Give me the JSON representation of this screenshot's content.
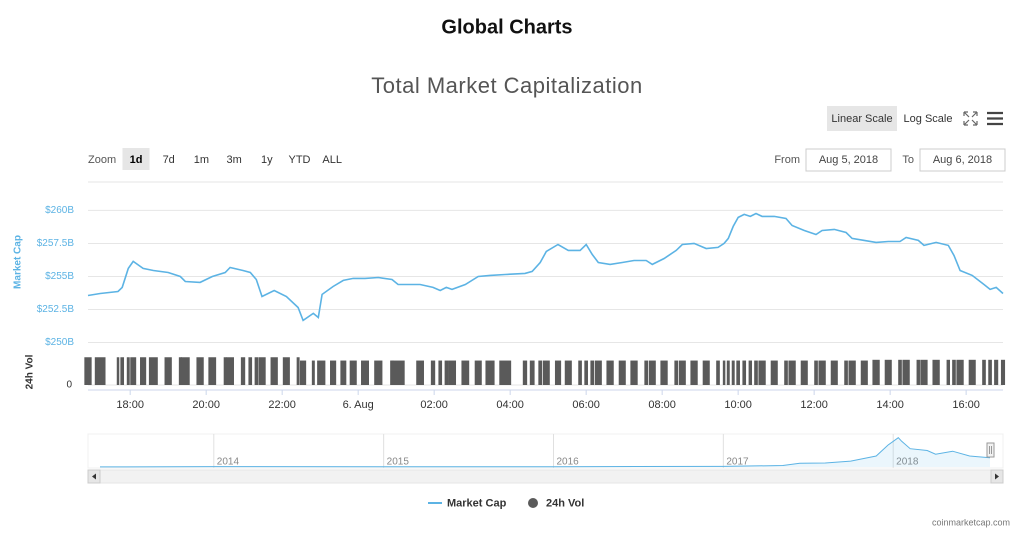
{
  "header": {
    "title": "Global Charts"
  },
  "toolbar": {
    "scale_buttons": [
      "Linear Scale",
      "Log Scale"
    ],
    "selected_scale": 0,
    "zoom_label": "Zoom",
    "zoom_buttons": [
      "1d",
      "7d",
      "1m",
      "3m",
      "1y",
      "YTD",
      "ALL"
    ],
    "selected_zoom": 0,
    "from_label": "From",
    "from_date": "Aug 5, 2018",
    "to_label": "To",
    "to_date": "Aug 6, 2018"
  },
  "chart_data": {
    "type": "line",
    "title": "Total Market Capitalization",
    "ylabel": "Market Cap",
    "y2label": "24h Vol",
    "log_scale": false,
    "grid": true,
    "x": [
      16.89,
      17.21,
      17.68,
      17.79,
      17.95,
      18.08,
      18.34,
      18.61,
      19,
      19.32,
      19.45,
      19.84,
      20.16,
      20.5,
      20.63,
      20.97,
      21.16,
      21.32,
      21.47,
      21.79,
      22.11,
      22.42,
      22.55,
      22.82,
      22.95,
      23.05,
      23.34,
      23.61,
      23.87,
      24.18,
      24.53,
      24.89,
      25.05,
      25.63,
      25.97,
      26.16,
      26.32,
      26.47,
      26.82,
      27.16,
      27.47,
      27.87,
      28.39,
      28.58,
      28.79,
      28.95,
      29.26,
      29.53,
      29.84,
      30,
      30.16,
      30.32,
      30.63,
      30.95,
      31.26,
      31.58,
      31.74,
      32.05,
      32.37,
      32.53,
      32.84,
      33.16,
      33.47,
      33.63,
      33.74,
      33.87,
      34,
      34.16,
      34.32,
      34.47,
      34.63,
      34.95,
      35.26,
      35.42,
      35.74,
      36.05,
      36.21,
      36.53,
      36.84,
      37,
      37.32,
      37.63,
      37.95,
      38.26,
      38.42,
      38.74,
      38.89,
      39.21,
      39.53,
      39.68,
      39.84,
      40.16,
      40.47,
      40.63,
      40.79,
      40.97
    ],
    "series": [
      {
        "name": "Market Cap",
        "color": "#5cb3e4",
        "values": [
          253.56,
          253.71,
          253.86,
          254.17,
          255.61,
          256.14,
          255.61,
          255.45,
          255.3,
          255,
          254.62,
          254.55,
          255,
          255.3,
          255.68,
          255.45,
          255.3,
          254.77,
          253.48,
          253.94,
          253.48,
          252.65,
          251.67,
          252.2,
          251.89,
          253.64,
          254.24,
          254.7,
          254.85,
          254.85,
          254.92,
          254.77,
          254.39,
          254.39,
          254.17,
          253.94,
          254.17,
          254.02,
          254.39,
          255,
          255.08,
          255.15,
          255.23,
          255.38,
          256.06,
          256.89,
          257.42,
          256.97,
          256.97,
          257.42,
          256.67,
          256.06,
          255.91,
          256.06,
          256.21,
          256.21,
          255.91,
          256.36,
          256.97,
          257.42,
          257.5,
          257.12,
          257.2,
          257.5,
          257.88,
          258.79,
          259.47,
          259.7,
          259.55,
          259.77,
          259.55,
          259.55,
          259.39,
          258.86,
          258.48,
          258.18,
          258.48,
          258.56,
          258.33,
          257.88,
          257.73,
          257.58,
          257.65,
          257.65,
          257.95,
          257.73,
          257.35,
          257.58,
          257.35,
          256.59,
          255.45,
          255.08,
          254.39,
          254.02,
          254.17,
          253.71
        ]
      },
      {
        "name": "24h Vol",
        "color": "#5a5a5a",
        "type": "column",
        "axis": "y2",
        "values": [
          18.5,
          18.5,
          18.5,
          18.5,
          18.5,
          18.5,
          18.5,
          18.5,
          18.5,
          18.5,
          18.5,
          18.5,
          18.5,
          18.5,
          18.5,
          18.5,
          18.5,
          18.5,
          18.5,
          18.5,
          18.5,
          18.5,
          16.3,
          16.3,
          16.3,
          16.3,
          16.3,
          16.3,
          16.3,
          16.3,
          16.3,
          16.3,
          16.3,
          16.3,
          16.3,
          16.3,
          16.3,
          16.3,
          16.3,
          16.3,
          16.3,
          16.3,
          16.3,
          16.3,
          16.3,
          16.3,
          16.3,
          16.3,
          16.3,
          16.3,
          16.3,
          16.3,
          16.3,
          16.3,
          16.3,
          16.3,
          16.3,
          16.3,
          16.3,
          16.3,
          16.3,
          16.3,
          16.3,
          16.3,
          16.3,
          16.3,
          16.3,
          16.3,
          16.3,
          16.3,
          16.3,
          16.3,
          16.3,
          16.3,
          16.3,
          16.3,
          16.3,
          16.3,
          16.3,
          16.3,
          16.3,
          16.8,
          16.8,
          16.8,
          16.8,
          16.8,
          16.8,
          16.8,
          16.8,
          16.8,
          16.8,
          16.8,
          16.8,
          16.8,
          16.8,
          16.8
        ]
      }
    ],
    "xlim": [
      16.89,
      40.97
    ],
    "xticks": [
      {
        "value": 18,
        "label": "18:00"
      },
      {
        "value": 20,
        "label": "20:00"
      },
      {
        "value": 22,
        "label": "22:00"
      },
      {
        "value": 24,
        "label": "6. Aug"
      },
      {
        "value": 26,
        "label": "02:00"
      },
      {
        "value": 28,
        "label": "04:00"
      },
      {
        "value": 30,
        "label": "06:00"
      },
      {
        "value": 32,
        "label": "08:00"
      },
      {
        "value": 34,
        "label": "10:00"
      },
      {
        "value": 36,
        "label": "12:00"
      },
      {
        "value": 38,
        "label": "14:00"
      },
      {
        "value": 40,
        "label": "16:00"
      }
    ],
    "ylim": [
      250,
      262
    ],
    "yticks": [
      {
        "value": 250,
        "label": "$250B"
      },
      {
        "value": 252.5,
        "label": "$252.5B"
      },
      {
        "value": 255,
        "label": "$255B"
      },
      {
        "value": 257.5,
        "label": "$257.5B"
      },
      {
        "value": 260,
        "label": "$260B"
      }
    ],
    "y2lim": [
      0,
      20
    ],
    "y2ticks": [
      0
    ],
    "navigator": {
      "x": [
        2013.33,
        2014,
        2015,
        2016,
        2017,
        2017.35,
        2017.45,
        2017.6,
        2017.75,
        2017.9,
        2017.97,
        2018.03,
        2018.05,
        2018.1,
        2018.2,
        2018.25,
        2018.35,
        2018.45,
        2018.5,
        2018.57
      ],
      "values": [
        2,
        10,
        5,
        7,
        17,
        40,
        100,
        110,
        160,
        300,
        600,
        800,
        700,
        500,
        450,
        350,
        430,
        300,
        280,
        250
      ],
      "xlim": [
        2013.33,
        2018.57
      ],
      "ylim": [
        0,
        900
      ],
      "xticks": [
        {
          "value": 2014,
          "label": "2014"
        },
        {
          "value": 2015,
          "label": "2015"
        },
        {
          "value": 2016,
          "label": "2016"
        },
        {
          "value": 2017,
          "label": "2017"
        },
        {
          "value": 2018,
          "label": "2018"
        }
      ]
    }
  },
  "footer": {
    "credit": "coinmarketcap.com"
  }
}
